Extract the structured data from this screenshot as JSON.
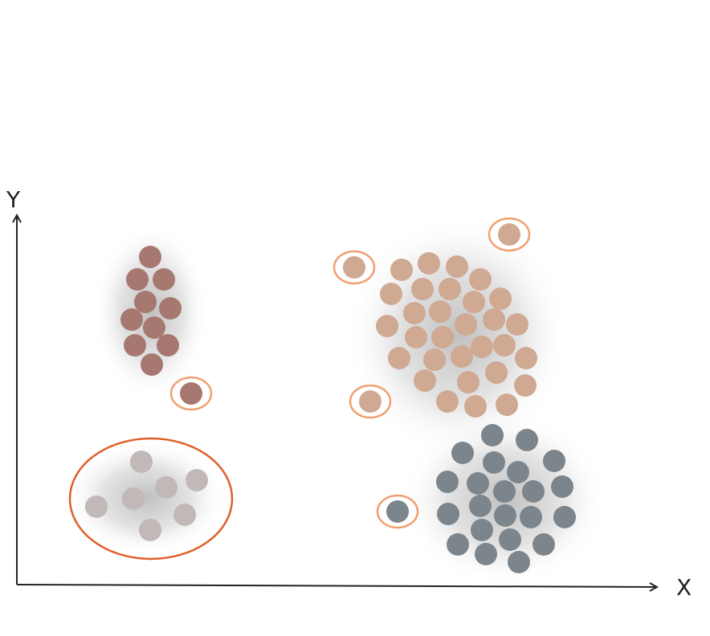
{
  "axes": {
    "x_label": "X",
    "y_label": "Y",
    "color": "#222222"
  },
  "colors": {
    "brown": "#a6786f",
    "tan": "#cfa992",
    "slate": "#7c858b",
    "gray": "#c1b8b8",
    "outlier_ring": "#f0a070",
    "highlight_ring": "#e0602a",
    "halo": "#8c8c8c"
  },
  "clusters": [
    {
      "name": "brown-cluster",
      "color_key": "brown",
      "points": [
        [
          187,
          320
        ],
        [
          171,
          348
        ],
        [
          204,
          348
        ],
        [
          181,
          376
        ],
        [
          212,
          384
        ],
        [
          164,
          398
        ],
        [
          192,
          408
        ],
        [
          168,
          430
        ],
        [
          209,
          430
        ],
        [
          189,
          454
        ]
      ]
    },
    {
      "name": "tan-cluster",
      "color_key": "tan",
      "points": [
        [
          500,
          336
        ],
        [
          534,
          328
        ],
        [
          569,
          332
        ],
        [
          598,
          348
        ],
        [
          487,
          366
        ],
        [
          526,
          360
        ],
        [
          560,
          360
        ],
        [
          590,
          376
        ],
        [
          623,
          372
        ],
        [
          516,
          390
        ],
        [
          548,
          388
        ],
        [
          482,
          406
        ],
        [
          580,
          404
        ],
        [
          615,
          398
        ],
        [
          644,
          404
        ],
        [
          518,
          420
        ],
        [
          551,
          420
        ],
        [
          600,
          432
        ],
        [
          628,
          430
        ],
        [
          497,
          446
        ],
        [
          541,
          448
        ],
        [
          575,
          444
        ],
        [
          655,
          446
        ],
        [
          529,
          474
        ],
        [
          583,
          476
        ],
        [
          618,
          464
        ],
        [
          654,
          480
        ],
        [
          557,
          500
        ],
        [
          592,
          506
        ],
        [
          631,
          504
        ]
      ]
    },
    {
      "name": "slate-cluster",
      "color_key": "slate",
      "points": [
        [
          613,
          542
        ],
        [
          656,
          548
        ],
        [
          576,
          564
        ],
        [
          615,
          576
        ],
        [
          645,
          588
        ],
        [
          690,
          574
        ],
        [
          557,
          600
        ],
        [
          595,
          602
        ],
        [
          628,
          612
        ],
        [
          664,
          612
        ],
        [
          700,
          606
        ],
        [
          598,
          630
        ],
        [
          558,
          640
        ],
        [
          629,
          642
        ],
        [
          661,
          644
        ],
        [
          703,
          644
        ],
        [
          600,
          660
        ],
        [
          635,
          672
        ],
        [
          570,
          678
        ],
        [
          677,
          678
        ],
        [
          605,
          690
        ],
        [
          646,
          700
        ]
      ]
    },
    {
      "name": "gray-cluster",
      "color_key": "gray",
      "points": [
        [
          176,
          575
        ],
        [
          245,
          598
        ],
        [
          207,
          607
        ],
        [
          166,
          621
        ],
        [
          120,
          631
        ],
        [
          230,
          641
        ],
        [
          187,
          660
        ]
      ]
    }
  ],
  "outliers": [
    {
      "name": "outlier-brown",
      "color_key": "brown",
      "point": [
        238,
        490
      ]
    },
    {
      "name": "outlier-tan-left",
      "color_key": "tan",
      "point": [
        441,
        333
      ]
    },
    {
      "name": "outlier-tan-top",
      "color_key": "tan",
      "point": [
        634,
        292
      ]
    },
    {
      "name": "outlier-tan-bottom",
      "color_key": "tan",
      "point": [
        461,
        500
      ]
    },
    {
      "name": "outlier-slate",
      "color_key": "slate",
      "point": [
        495,
        637
      ]
    }
  ]
}
